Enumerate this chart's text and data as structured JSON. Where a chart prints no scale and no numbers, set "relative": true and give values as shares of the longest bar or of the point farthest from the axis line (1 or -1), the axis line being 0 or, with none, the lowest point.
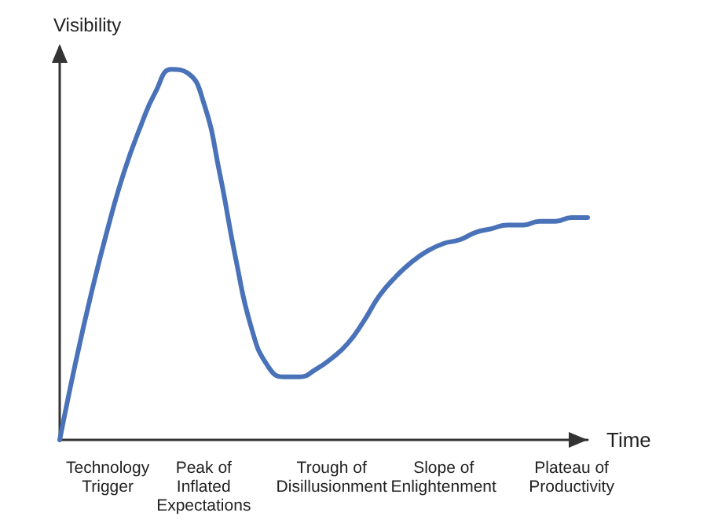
{
  "chart_data": {
    "type": "line",
    "relative": true,
    "xlabel": "Time",
    "ylabel": "Visibility",
    "categories": [
      null,
      null,
      null,
      "Technology\nTrigger",
      null,
      null,
      null,
      null,
      null,
      "Peak of\nInflated\nExpectations",
      null,
      null,
      null,
      null,
      null,
      null,
      null,
      "Trough of\nDisillusionment",
      null,
      null,
      null,
      null,
      null,
      null,
      "Slope of\nEnlightenment",
      null,
      null,
      null,
      null,
      null,
      null,
      null,
      "Plateau of\nProductivity",
      null
    ],
    "series": [
      {
        "color": "#4a72b8",
        "values": [
          0,
          0.21,
          0.4,
          0.57,
          0.72,
          0.84,
          0.94,
          1,
          0.99,
          0.91,
          0.72,
          0.49,
          0.3,
          0.2,
          0.17,
          0.17,
          0.19,
          0.22,
          0.26,
          0.32,
          0.39,
          0.44,
          0.48,
          0.51,
          0.53,
          0.54,
          0.56,
          0.57,
          0.58,
          0.58,
          0.59,
          0.59,
          0.6,
          0.6
        ]
      }
    ],
    "grid": false,
    "marker": "none",
    "line_style": "solid"
  }
}
